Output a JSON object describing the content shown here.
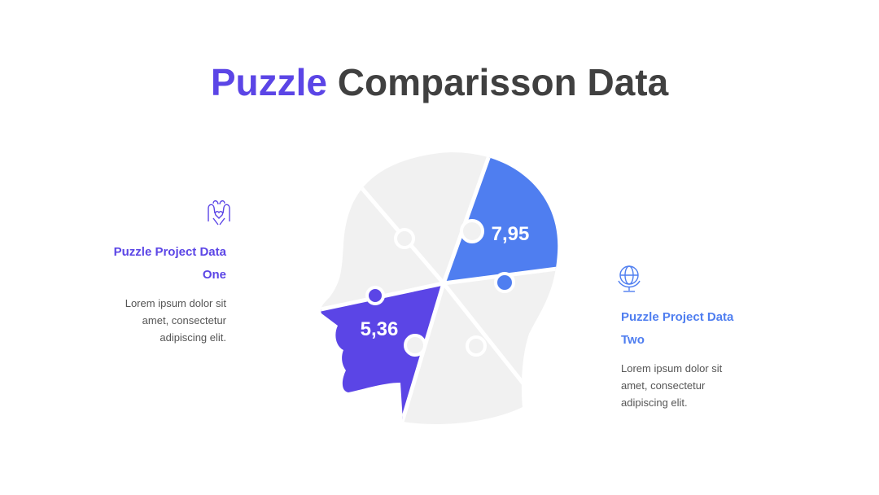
{
  "title": {
    "highlight": "Puzzle",
    "rest": "Comparisson Data"
  },
  "values": [
    "7,95",
    "5,36"
  ],
  "blocks": [
    {
      "heading": "Puzzle Project Data One",
      "body": "Lorem ipsum dolor sit amet, consectetur adipiscing elit."
    },
    {
      "heading": "Puzzle Project Data Two",
      "body": "Lorem ipsum dolor sit amet, consectetur adipiscing elit."
    }
  ]
}
